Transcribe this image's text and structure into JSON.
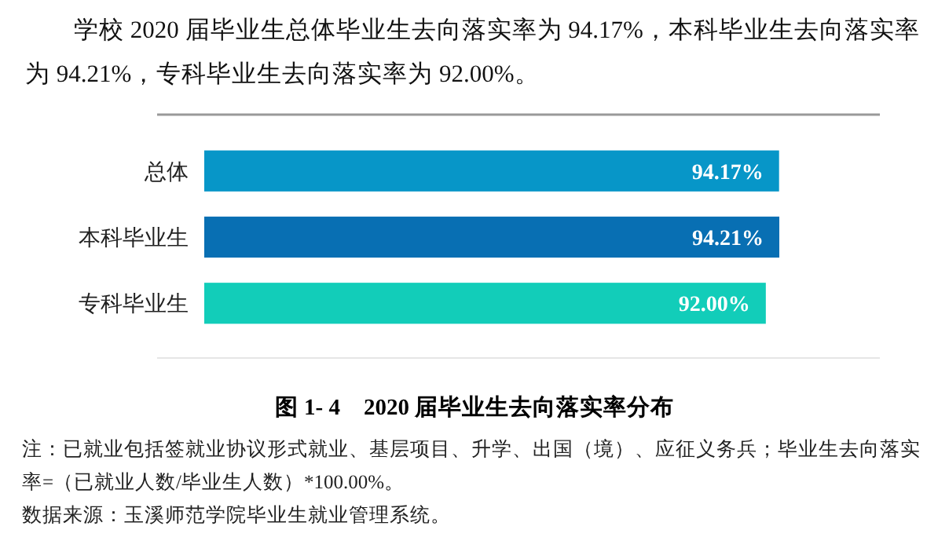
{
  "chart_data": {
    "type": "bar",
    "orientation": "horizontal",
    "title": "图 1- 4　2020 届毕业生去向落实率分布",
    "subtitle": "学校 2020 届毕业生总体毕业生去向落实率为 94.17%，本科毕业生去向落实率为 94.21%，专科毕业生去向落实率为 92.00%。",
    "categories": [
      "总体",
      "本科毕业生",
      "专科毕业生"
    ],
    "values": [
      94.17,
      94.21,
      92.0
    ],
    "colors": [
      "#0796c8",
      "#086fb3",
      "#12cdb9"
    ],
    "value_labels": [
      "94.17%",
      "94.21%",
      "92.00%"
    ],
    "tick_labels": "y",
    "annotations": [
      "注：已就业包括签就业协议形式就业、基层项目、升学、出国（境）、应征义务兵；毕业生去向落实率=（已就业人数/毕业生人数）*100.00%。",
      "数据来源：玉溪师范学院毕业生就业管理系统。"
    ]
  }
}
